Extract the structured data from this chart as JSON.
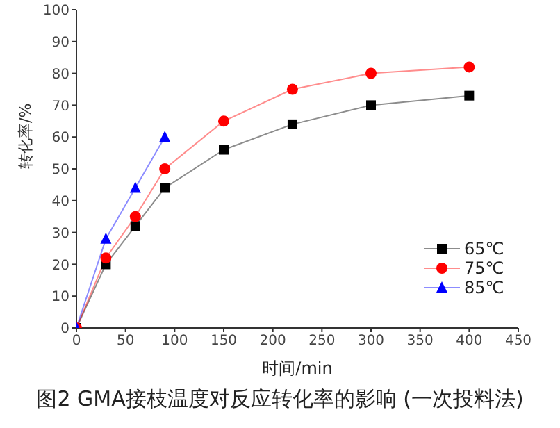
{
  "chart_data": {
    "type": "line",
    "title": "图2 GMA接枝温度对反应转化率的影响 (一次投料法)",
    "xlabel": "时间/min",
    "ylabel": "转化率/%",
    "xlim": [
      0,
      450
    ],
    "xticks": [
      0,
      50,
      100,
      150,
      200,
      250,
      300,
      350,
      400,
      450
    ],
    "ylim": [
      0,
      100
    ],
    "yticks": [
      0,
      10,
      20,
      30,
      40,
      50,
      60,
      70,
      80,
      90,
      100
    ],
    "grid": false,
    "legend": "bottom right",
    "series": [
      {
        "name": "65℃",
        "color": "#000000",
        "marker": "square",
        "x": [
          0,
          30,
          60,
          90,
          150,
          220,
          300,
          400
        ],
        "values": [
          0,
          20,
          32,
          44,
          56,
          64,
          70,
          73
        ]
      },
      {
        "name": "75℃",
        "color": "#ff0000",
        "marker": "circle",
        "x": [
          0,
          30,
          60,
          90,
          150,
          220,
          300,
          400
        ],
        "values": [
          0,
          22,
          35,
          50,
          65,
          75,
          80,
          82
        ]
      },
      {
        "name": "85℃",
        "color": "#0000ff",
        "marker": "triangle",
        "x": [
          0,
          30,
          60,
          90
        ],
        "values": [
          0,
          28,
          44,
          60
        ]
      }
    ]
  }
}
